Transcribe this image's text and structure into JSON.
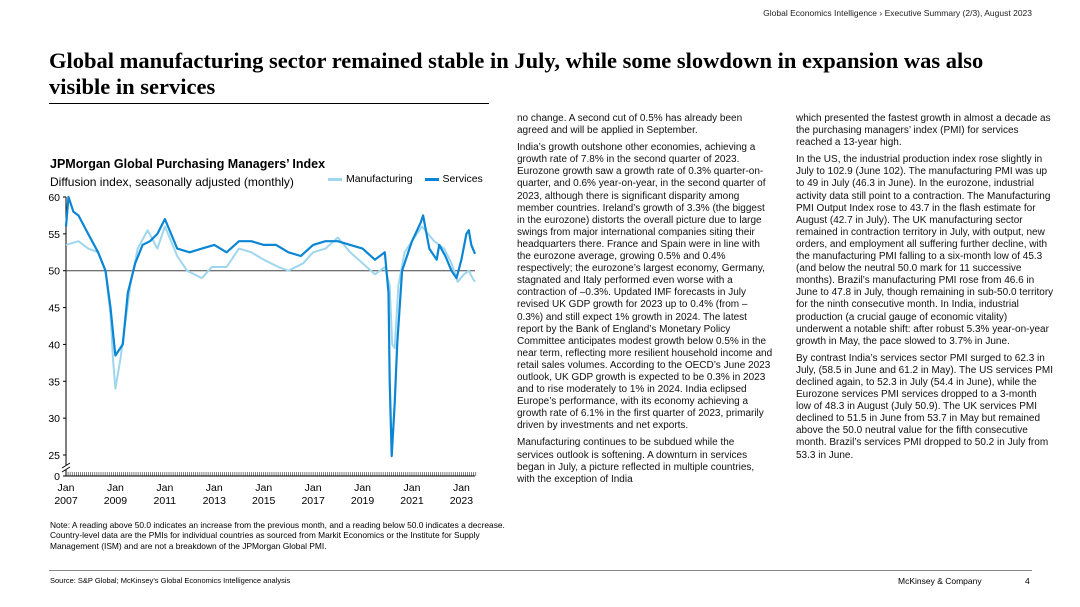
{
  "header": {
    "crumb": "Global Economics Intelligence › Executive Summary (2/3), August 2023"
  },
  "title": "Global manufacturing sector remained stable in July, while some slowdown in expansion was also visible in services",
  "chart_data": {
    "type": "line",
    "title": "JPMorgan Global Purchasing Managers’ Index",
    "subtitle": "Diffusion index, seasonally adjusted (monthly)",
    "ylim": [
      0,
      60
    ],
    "yticks": [
      0,
      25,
      30,
      35,
      40,
      45,
      50,
      55,
      60
    ],
    "axis_break": "between 0 and 25",
    "reference_line": 50,
    "x_range": [
      "2007-01",
      "2023-07"
    ],
    "xticks": [
      {
        "line1": "Jan",
        "line2": "2007",
        "x": 2007.0
      },
      {
        "line1": "Jan",
        "line2": "2009",
        "x": 2009.0
      },
      {
        "line1": "Jan",
        "line2": "2011",
        "x": 2011.0
      },
      {
        "line1": "Jan",
        "line2": "2013",
        "x": 2013.0
      },
      {
        "line1": "Jan",
        "line2": "2015",
        "x": 2015.0
      },
      {
        "line1": "Jan",
        "line2": "2017",
        "x": 2017.0
      },
      {
        "line1": "Jan",
        "line2": "2019",
        "x": 2019.0
      },
      {
        "line1": "Jan",
        "line2": "2021",
        "x": 2021.0
      },
      {
        "line1": "Jan",
        "line2": "2023",
        "x": 2023.0
      }
    ],
    "legend_position": "top-right",
    "series": [
      {
        "name": "Manufacturing",
        "color": "#9fd6ee",
        "points": [
          [
            2007.0,
            53.5
          ],
          [
            2007.5,
            54.0
          ],
          [
            2007.9,
            53.0
          ],
          [
            2008.3,
            52.5
          ],
          [
            2008.6,
            50.0
          ],
          [
            2008.8,
            44.0
          ],
          [
            2008.9,
            38.0
          ],
          [
            2009.0,
            34.0
          ],
          [
            2009.2,
            38.0
          ],
          [
            2009.4,
            43.0
          ],
          [
            2009.6,
            48.0
          ],
          [
            2009.9,
            53.0
          ],
          [
            2010.3,
            55.5
          ],
          [
            2010.7,
            53.0
          ],
          [
            2011.0,
            56.0
          ],
          [
            2011.5,
            52.0
          ],
          [
            2011.9,
            50.0
          ],
          [
            2012.5,
            49.0
          ],
          [
            2012.9,
            50.5
          ],
          [
            2013.5,
            50.5
          ],
          [
            2014.0,
            53.0
          ],
          [
            2014.5,
            52.5
          ],
          [
            2015.0,
            51.5
          ],
          [
            2015.6,
            50.5
          ],
          [
            2016.0,
            50.0
          ],
          [
            2016.6,
            51.0
          ],
          [
            2017.0,
            52.5
          ],
          [
            2017.5,
            53.0
          ],
          [
            2018.0,
            54.5
          ],
          [
            2018.5,
            52.5
          ],
          [
            2019.0,
            51.0
          ],
          [
            2019.5,
            49.5
          ],
          [
            2019.9,
            50.5
          ],
          [
            2020.1,
            48.0
          ],
          [
            2020.2,
            40.0
          ],
          [
            2020.3,
            39.5
          ],
          [
            2020.45,
            48.0
          ],
          [
            2020.7,
            52.5
          ],
          [
            2021.0,
            54.0
          ],
          [
            2021.4,
            56.0
          ],
          [
            2021.9,
            54.0
          ],
          [
            2022.3,
            53.0
          ],
          [
            2022.6,
            51.0
          ],
          [
            2022.85,
            48.5
          ],
          [
            2023.1,
            49.5
          ],
          [
            2023.3,
            50.0
          ],
          [
            2023.45,
            49.0
          ],
          [
            2023.55,
            48.5
          ]
        ]
      },
      {
        "name": "Services",
        "color": "#0a86d4",
        "points": [
          [
            2007.0,
            56.0
          ],
          [
            2007.1,
            60.0
          ],
          [
            2007.3,
            58.0
          ],
          [
            2007.5,
            57.5
          ],
          [
            2007.9,
            55.0
          ],
          [
            2008.3,
            52.5
          ],
          [
            2008.6,
            50.0
          ],
          [
            2008.8,
            45.0
          ],
          [
            2008.95,
            40.0
          ],
          [
            2009.0,
            38.5
          ],
          [
            2009.3,
            40.0
          ],
          [
            2009.5,
            47.0
          ],
          [
            2009.8,
            51.0
          ],
          [
            2010.1,
            53.5
          ],
          [
            2010.4,
            54.0
          ],
          [
            2010.7,
            55.0
          ],
          [
            2011.0,
            57.0
          ],
          [
            2011.5,
            53.0
          ],
          [
            2012.0,
            52.5
          ],
          [
            2012.5,
            53.0
          ],
          [
            2013.0,
            53.5
          ],
          [
            2013.5,
            52.5
          ],
          [
            2014.0,
            54.0
          ],
          [
            2014.5,
            54.0
          ],
          [
            2015.0,
            53.5
          ],
          [
            2015.5,
            53.5
          ],
          [
            2016.0,
            52.5
          ],
          [
            2016.5,
            52.0
          ],
          [
            2017.0,
            53.5
          ],
          [
            2017.5,
            54.0
          ],
          [
            2018.0,
            54.0
          ],
          [
            2018.5,
            53.5
          ],
          [
            2019.0,
            53.0
          ],
          [
            2019.5,
            51.5
          ],
          [
            2019.9,
            52.5
          ],
          [
            2020.05,
            47.0
          ],
          [
            2020.1,
            35.0
          ],
          [
            2020.18,
            23.7
          ],
          [
            2020.3,
            32.0
          ],
          [
            2020.4,
            40.0
          ],
          [
            2020.6,
            50.0
          ],
          [
            2021.0,
            54.0
          ],
          [
            2021.35,
            56.5
          ],
          [
            2021.45,
            57.5
          ],
          [
            2021.7,
            53.0
          ],
          [
            2022.0,
            51.5
          ],
          [
            2022.1,
            53.5
          ],
          [
            2022.35,
            52.0
          ],
          [
            2022.6,
            50.0
          ],
          [
            2022.8,
            49.0
          ],
          [
            2023.0,
            51.5
          ],
          [
            2023.2,
            55.0
          ],
          [
            2023.3,
            55.5
          ],
          [
            2023.4,
            53.5
          ],
          [
            2023.55,
            52.3
          ]
        ]
      }
    ]
  },
  "note": "Note: A reading above 50.0 indicates an increase from the previous month, and a reading below 50.0 indicates a decrease. Country-level data are the PMIs for individual countries as sourced from Markit Economics or the Institute for Supply Management (ISM) and are not a breakdown of the JPMorgan Global PMI.",
  "source": "Source: S&P Global; McKinsey’s Global Economics Intelligence analysis",
  "footer": {
    "brand": "McKinsey & Company",
    "page": "4"
  },
  "text_columns": {
    "col1": [
      "no change. A second cut of 0.5% has already been agreed and will be applied in September.",
      "India’s growth outshone other economies, achieving a growth rate of 7.8% in the second quarter of 2023. Eurozone growth saw a growth rate of 0.3% quarter-on-quarter, and 0.6% year-on-year, in the second quarter of 2023, although there is significant disparity among member countries. Ireland’s growth of 3.3% (the biggest in the eurozone) distorts the overall picture due to large swings from major international companies siting their headquarters there. France and Spain were in line with the eurozone average, growing 0.5% and 0.4% respectively; the eurozone’s largest economy, Germany, stagnated and Italy performed even worse with a contraction of –0.3%. Updated IMF forecasts in July revised UK GDP growth for 2023 up to 0.4% (from –0.3%) and still expect 1% growth in 2024. The latest report by the Bank of England’s Monetary Policy Committee anticipates modest growth below 0.5% in the near term, reflecting more resilient household income and retail sales volumes. According to the OECD’s June 2023 outlook, UK GDP growth is expected to be 0.3% in 2023 and to rise moderately to 1% in 2024. India eclipsed Europe’s performance, with its economy achieving a growth rate of 6.1% in the first quarter of 2023, primarily driven by investments and net exports.",
      "Manufacturing continues to be subdued while the services outlook is softening. A downturn in services began in July, a picture reflected in multiple countries, with the exception of India"
    ],
    "col2": [
      "which presented the fastest growth in almost a decade as the purchasing managers’ index (PMI) for services reached a 13-year high.",
      "In the US, the industrial production index rose slightly in July to 102.9 (June 102). The manufacturing PMI was up to 49 in July (46.3 in June). In the eurozone, industrial activity data still point to a contraction. The Manufacturing PMI Output Index rose to 43.7 in the flash estimate for August (42.7 in July). The UK manufacturing sector remained in contraction territory in July, with output, new orders, and employment all suffering further decline, with the manufacturing PMI falling to a six-month low of 45.3 (and below the neutral 50.0 mark for 11 successive months). Brazil’s manufacturing PMI rose from 46.6 in June to 47.8 in July, though remaining in sub-50.0 territory for the ninth consecutive month. In India, industrial production (a crucial gauge of economic vitality) underwent a notable shift: after robust 5.3% year-on-year growth in May, the pace slowed to 3.7% in June.",
      "By contrast India’s services sector PMI surged to 62.3 in July, (58.5 in June and 61.2 in May). The US services PMI declined again, to 52.3 in July (54.4 in June), while the Eurozone services PMI services dropped to a 3-month low of 48.3 in August (July 50.9). The UK services PMI declined to 51.5 in June from 53.7 in May but remained above the 50.0 neutral value for the fifth consecutive month. Brazil’s services PMI dropped to 50.2 in July from 53.3 in June."
    ]
  }
}
